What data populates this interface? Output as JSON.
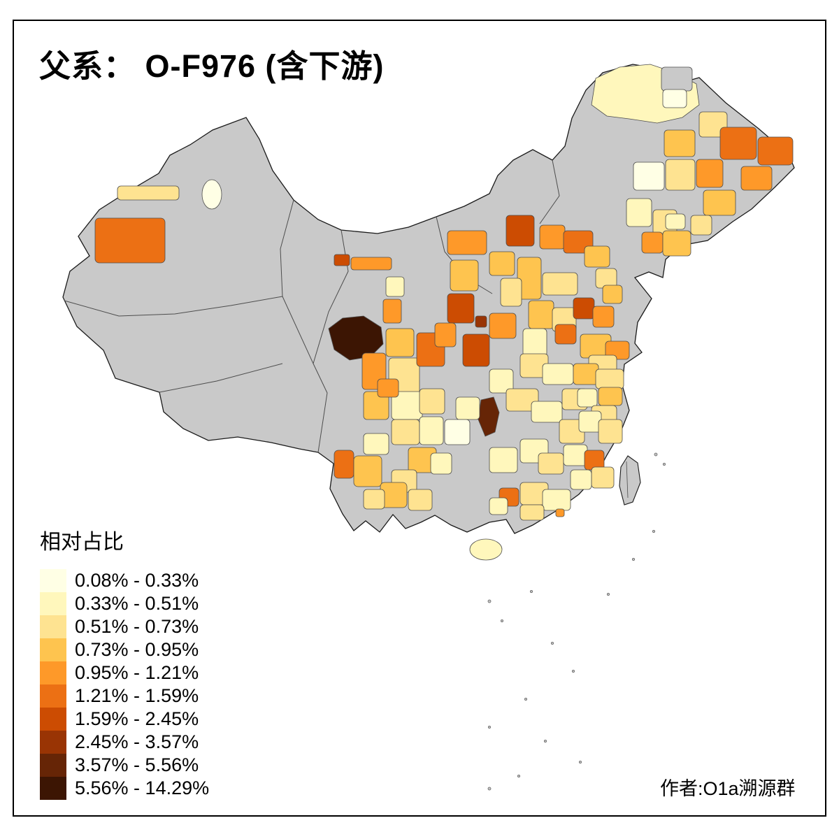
{
  "title": "父系：  O-F976 (含下游)",
  "author": "作者:O1a溯源群",
  "legend": {
    "title": "相对占比",
    "items": [
      {
        "label": "0.08% - 0.33%",
        "color": "#FFFFE5"
      },
      {
        "label": "0.33% - 0.51%",
        "color": "#FFF7BC"
      },
      {
        "label": "0.51% - 0.73%",
        "color": "#FEE391"
      },
      {
        "label": "0.73% - 0.95%",
        "color": "#FEC44F"
      },
      {
        "label": "0.95% - 1.21%",
        "color": "#FE9929"
      },
      {
        "label": "1.21% - 1.59%",
        "color": "#EC7014"
      },
      {
        "label": "1.59% - 2.45%",
        "color": "#CC4C02"
      },
      {
        "label": "2.45% - 3.57%",
        "color": "#993404"
      },
      {
        "label": "3.57% - 5.56%",
        "color": "#662506"
      },
      {
        "label": "5.56% - 14.29%",
        "color": "#3C1503"
      }
    ]
  },
  "map": {
    "description": "china-prefecture-choropleth",
    "no_data_color": "#C9C9C9",
    "background": "#FFFFFF"
  }
}
